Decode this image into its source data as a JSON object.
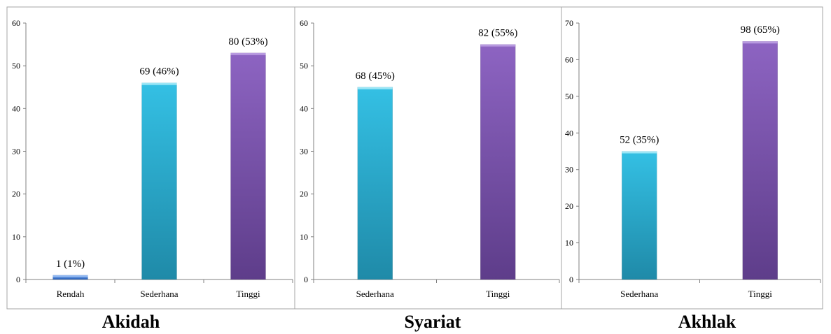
{
  "chart_data": [
    {
      "type": "bar",
      "title": "Akidah",
      "categories": [
        "Rendah",
        "Sederhana",
        "Tinggi"
      ],
      "values": [
        1,
        46,
        53
      ],
      "data_labels": [
        "1 (1%)",
        "69 (46%)",
        "80 (53%)"
      ],
      "bar_colors": [
        "#4a7fd0",
        "#29b5d8",
        "#8059b0"
      ],
      "ylim": [
        0,
        60
      ],
      "yticks": [
        0,
        10,
        20,
        30,
        40,
        50,
        60
      ],
      "xlabel": "",
      "ylabel": "",
      "grid": false,
      "legend": "none"
    },
    {
      "type": "bar",
      "title": "Syariat",
      "categories": [
        "Sederhana",
        "Tinggi"
      ],
      "values": [
        45,
        55
      ],
      "data_labels": [
        "68 (45%)",
        "82 (55%)"
      ],
      "bar_colors": [
        "#29b5d8",
        "#8059b0"
      ],
      "ylim": [
        0,
        60
      ],
      "yticks": [
        0,
        10,
        20,
        30,
        40,
        50,
        60
      ],
      "xlabel": "",
      "ylabel": "",
      "grid": false,
      "legend": "none"
    },
    {
      "type": "bar",
      "title": "Akhlak",
      "categories": [
        "Sederhana",
        "Tinggi"
      ],
      "values": [
        35,
        65
      ],
      "data_labels": [
        "52 (35%)",
        "98 (65%)"
      ],
      "bar_colors": [
        "#29b5d8",
        "#8059b0"
      ],
      "ylim": [
        0,
        70
      ],
      "yticks": [
        0,
        10,
        20,
        30,
        40,
        50,
        60,
        70
      ],
      "xlabel": "",
      "ylabel": "",
      "grid": false,
      "legend": "none"
    }
  ]
}
